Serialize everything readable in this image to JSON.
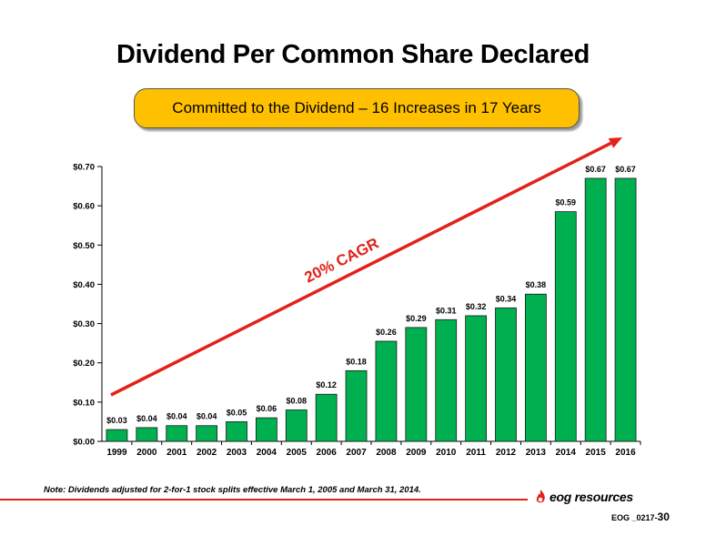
{
  "slide": {
    "title": "Dividend Per Common Share Declared",
    "banner": "Committed to the Dividend – 16 Increases in 17 Years",
    "note": "Note: Dividends adjusted for 2-for-1 stock splits effective March 1, 2005 and March 31, 2014.",
    "logo_text": "eog resources",
    "footer_code": "EOG _0217-",
    "page_number": "30"
  },
  "chart_data": {
    "type": "bar",
    "title": "",
    "xlabel": "",
    "ylabel": "",
    "categories": [
      "1999",
      "2000",
      "2001",
      "2002",
      "2003",
      "2004",
      "2005",
      "2006",
      "2007",
      "2008",
      "2009",
      "2010",
      "2011",
      "2012",
      "2013",
      "2014",
      "2015",
      "2016"
    ],
    "values": [
      0.03,
      0.035,
      0.04,
      0.04,
      0.05,
      0.06,
      0.08,
      0.12,
      0.18,
      0.255,
      0.29,
      0.31,
      0.32,
      0.34,
      0.375,
      0.585,
      0.67,
      0.67
    ],
    "data_labels": [
      "$0.03",
      "$0.04",
      "$0.04",
      "$0.04",
      "$0.05",
      "$0.06",
      "$0.08",
      "$0.12",
      "$0.18",
      "$0.26",
      "$0.29",
      "$0.31",
      "$0.32",
      "$0.34",
      "$0.38",
      "$0.59",
      "$0.67",
      "$0.67"
    ],
    "ylim": [
      0,
      0.7
    ],
    "y_ticks": [
      0,
      0.1,
      0.2,
      0.3,
      0.4,
      0.5,
      0.6,
      0.7
    ],
    "y_tick_labels": [
      "$0.00",
      "$0.10",
      "$0.20",
      "$0.30",
      "$0.40",
      "$0.50",
      "$0.60",
      "$0.70"
    ],
    "grid": false,
    "annotation": "20% CAGR",
    "colors": {
      "bar": "#00b050",
      "bar_edge": "#1a1a1a",
      "arrow": "#e32119",
      "banner": "#ffc000"
    }
  }
}
